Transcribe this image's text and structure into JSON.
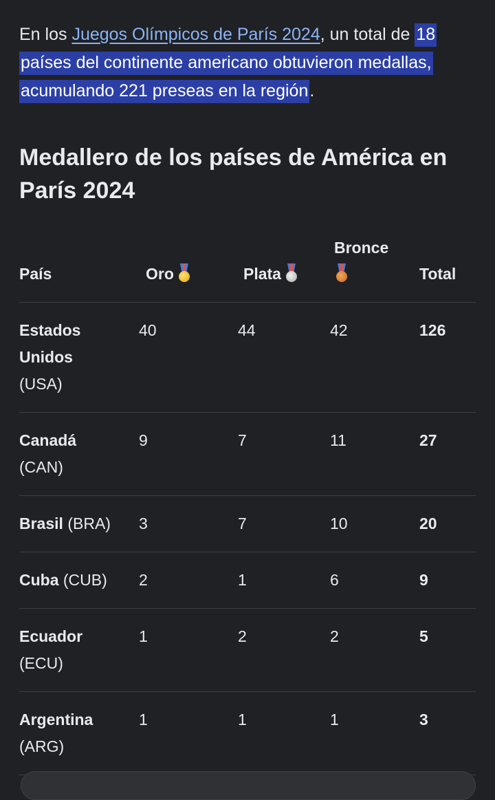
{
  "intro": {
    "prefix": "En los ",
    "link_text": "Juegos Olímpicos de París 2024",
    "after_link": ", un total de ",
    "highlight": "18 países del continente americano obtuvieron medallas, acumulando 221 preseas en la región",
    "suffix": "."
  },
  "heading": "Medallero de los países de América en París 2024",
  "table": {
    "headers": {
      "country": "País",
      "gold": "Oro",
      "silver": "Plata",
      "bronze": "Bronce",
      "total": "Total"
    },
    "rows": [
      {
        "name": "Estados Unidos",
        "code": "(USA)",
        "gold": "40",
        "silver": "44",
        "bronze": "42",
        "total": "126"
      },
      {
        "name": "Canadá",
        "code": "(CAN)",
        "gold": "9",
        "silver": "7",
        "bronze": "11",
        "total": "27"
      },
      {
        "name": "Brasil",
        "code": "(BRA)",
        "gold": "3",
        "silver": "7",
        "bronze": "10",
        "total": "20"
      },
      {
        "name": "Cuba",
        "code": "(CUB)",
        "gold": "2",
        "silver": "1",
        "bronze": "6",
        "total": "9"
      },
      {
        "name": "Ecuador",
        "code": "(ECU)",
        "gold": "1",
        "silver": "2",
        "bronze": "2",
        "total": "5"
      },
      {
        "name": "Argentina",
        "code": "(ARG)",
        "gold": "1",
        "silver": "1",
        "bronze": "1",
        "total": "3"
      }
    ]
  },
  "icons": {
    "gold": "gold-medal-icon",
    "silver": "silver-medal-icon",
    "bronze": "bronze-medal-icon"
  },
  "colors": {
    "background": "#202124",
    "link": "#8ab4f8",
    "highlight": "#2b3fa6",
    "text": "#e8eaed",
    "divider": "#3c4043"
  }
}
